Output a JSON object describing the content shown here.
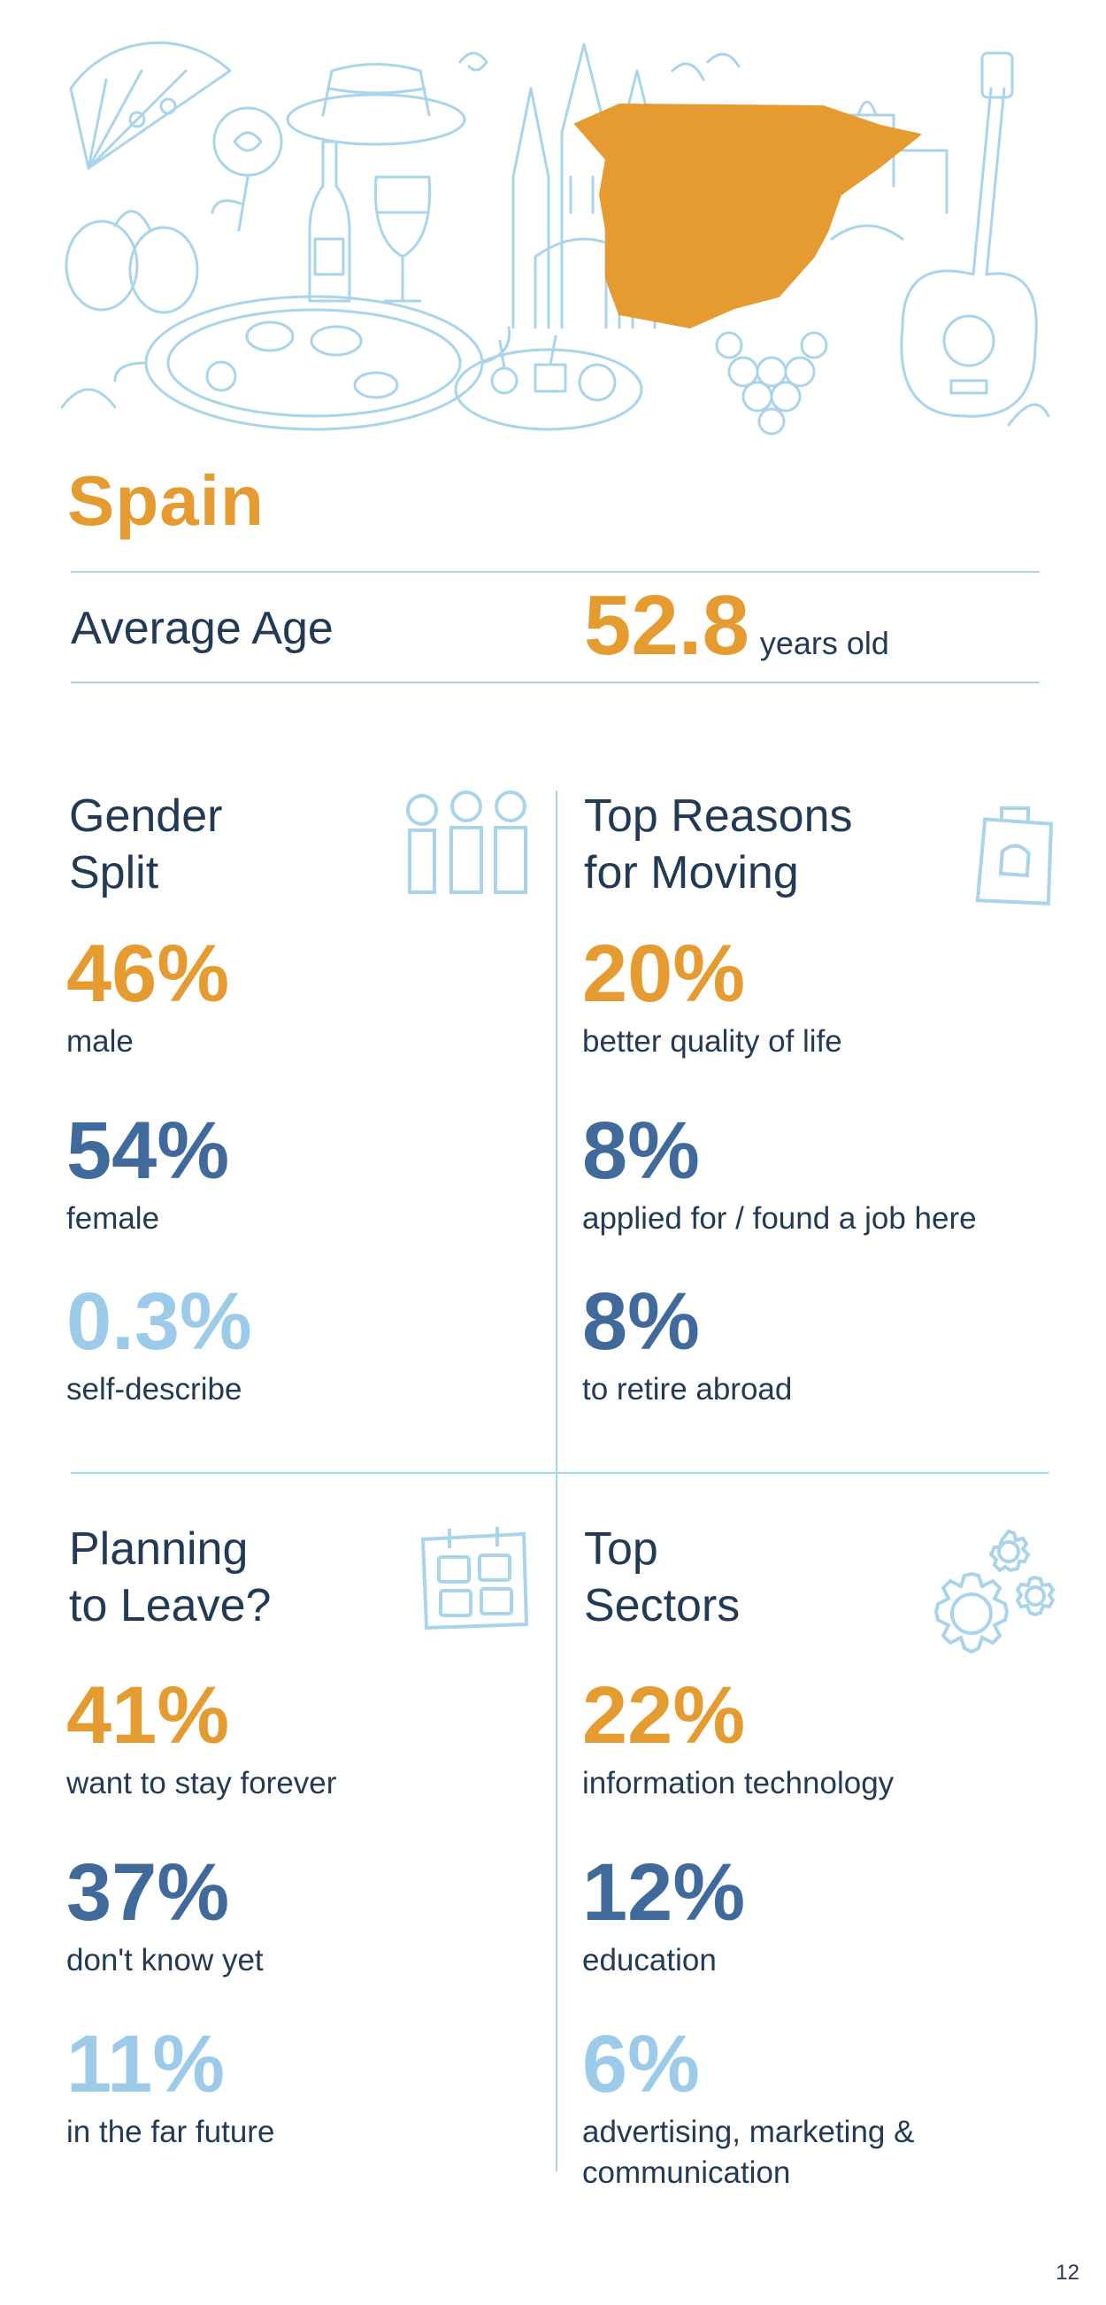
{
  "country": "Spain",
  "average_age": {
    "label": "Average Age",
    "value": "52.8",
    "unit": "years old"
  },
  "sections": {
    "gender": {
      "title_line1": "Gender",
      "title_line2": "Split",
      "stats": [
        {
          "value": "46%",
          "label": "male"
        },
        {
          "value": "54%",
          "label": "female"
        },
        {
          "value": "0.3%",
          "label": "self-describe"
        }
      ]
    },
    "reasons": {
      "title_line1": "Top Reasons",
      "title_line2": "for Moving",
      "stats": [
        {
          "value": "20%",
          "label": "better quality of life"
        },
        {
          "value": "8%",
          "label": "applied for / found a job here"
        },
        {
          "value": "8%",
          "label": "to retire abroad"
        }
      ]
    },
    "leave": {
      "title_line1": "Planning",
      "title_line2": "to Leave?",
      "stats": [
        {
          "value": "41%",
          "label": "want to stay forever"
        },
        {
          "value": "37%",
          "label": "don't know yet"
        },
        {
          "value": "11%",
          "label": "in the far future"
        }
      ]
    },
    "sectors": {
      "title_line1": "Top",
      "title_line2": "Sectors",
      "stats": [
        {
          "value": "22%",
          "label": "information technology"
        },
        {
          "value": "12%",
          "label": "education"
        },
        {
          "value": "6%",
          "label": "advertising, marketing & communication"
        }
      ]
    }
  },
  "colors": {
    "orange": "#e59b30",
    "blue": "#416a9c",
    "light_blue": "#9ccbe9",
    "line": "#a9d4ea",
    "text": "#233a55"
  },
  "icons": [
    "people-icon",
    "shopping-bag-icon",
    "calendar-icon",
    "gears-icon"
  ],
  "page_number": "12"
}
